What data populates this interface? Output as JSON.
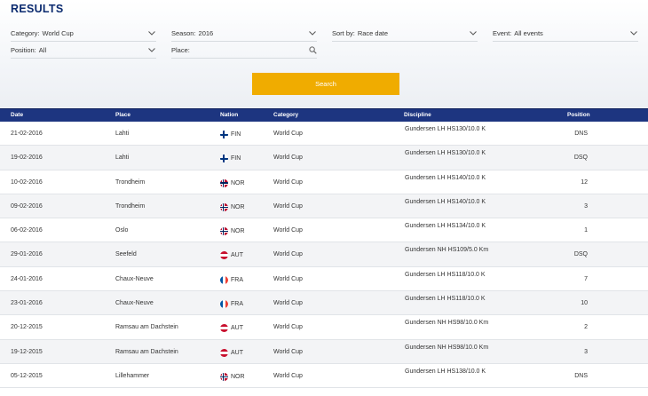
{
  "page_title": "RESULTS",
  "filters": {
    "category": {
      "label": "Category:",
      "value": "World Cup"
    },
    "season": {
      "label": "Season:",
      "value": "2016"
    },
    "sort_by": {
      "label": "Sort by:",
      "value": "Race date"
    },
    "event": {
      "label": "Event:",
      "value": "All events"
    },
    "position": {
      "label": "Position:",
      "value": "All"
    },
    "place": {
      "label": "Place:",
      "value": ""
    }
  },
  "search_button": "Search",
  "columns": [
    "Date",
    "Place",
    "Nation",
    "Category",
    "Discipline",
    "Position"
  ],
  "rows": [
    {
      "date": "21-02-2016",
      "place": "Lahti",
      "nation": "FIN",
      "category": "World Cup",
      "discipline": "Gundersen LH HS130/10.0 K",
      "position": "DNS"
    },
    {
      "date": "19-02-2016",
      "place": "Lahti",
      "nation": "FIN",
      "category": "World Cup",
      "discipline": "Gundersen LH HS130/10.0 K",
      "position": "DSQ"
    },
    {
      "date": "10-02-2016",
      "place": "Trondheim",
      "nation": "NOR",
      "category": "World Cup",
      "discipline": "Gundersen LH HS140/10.0 K",
      "position": "12"
    },
    {
      "date": "09-02-2016",
      "place": "Trondheim",
      "nation": "NOR",
      "category": "World Cup",
      "discipline": "Gundersen LH HS140/10.0 K",
      "position": "3"
    },
    {
      "date": "06-02-2016",
      "place": "Oslo",
      "nation": "NOR",
      "category": "World Cup",
      "discipline": "Gundersen LH HS134/10.0 K",
      "position": "1"
    },
    {
      "date": "29-01-2016",
      "place": "Seefeld",
      "nation": "AUT",
      "category": "World Cup",
      "discipline": "Gundersen NH HS109/5.0 Km",
      "position": "DSQ"
    },
    {
      "date": "24-01-2016",
      "place": "Chaux-Neuve",
      "nation": "FRA",
      "category": "World Cup",
      "discipline": "Gundersen LH HS118/10.0 K",
      "position": "7"
    },
    {
      "date": "23-01-2016",
      "place": "Chaux-Neuve",
      "nation": "FRA",
      "category": "World Cup",
      "discipline": "Gundersen LH HS118/10.0 K",
      "position": "10"
    },
    {
      "date": "20-12-2015",
      "place": "Ramsau am Dachstein",
      "nation": "AUT",
      "category": "World Cup",
      "discipline": "Gundersen NH HS98/10.0 Km",
      "position": "2"
    },
    {
      "date": "19-12-2015",
      "place": "Ramsau am Dachstein",
      "nation": "AUT",
      "category": "World Cup",
      "discipline": "Gundersen NH HS98/10.0 Km",
      "position": "3"
    },
    {
      "date": "05-12-2015",
      "place": "Lillehammer",
      "nation": "NOR",
      "category": "World Cup",
      "discipline": "Gundersen LH HS138/10.0 K",
      "position": "DNS"
    }
  ],
  "flag_colors": {
    "FIN": [
      "#ffffff",
      "#003580"
    ],
    "NOR": [
      "#ba0c2f",
      "#ffffff",
      "#00205b"
    ],
    "AUT": [
      "#c8102e",
      "#ffffff"
    ],
    "FRA": [
      "#0055a4",
      "#ffffff",
      "#ef4135"
    ]
  },
  "colors": {
    "header_bar": "#1d3580",
    "title": "#0b2a6f",
    "search_button": "#f0ac00"
  }
}
